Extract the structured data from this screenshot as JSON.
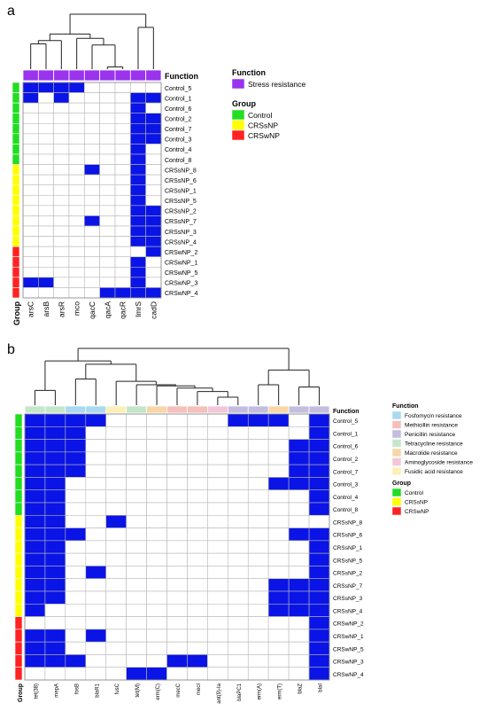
{
  "chart_data": [
    {
      "type": "heatmap",
      "panel_label": "a",
      "columns": [
        "arsC",
        "arsB",
        "arsR",
        "mco",
        "qacC",
        "qacA",
        "qacR",
        "lmrS",
        "cadD"
      ],
      "rows": [
        "Control_5",
        "Control_1",
        "Control_6",
        "Control_2",
        "Control_7",
        "Control_3",
        "Control_4",
        "Control_8",
        "CRSsNP_8",
        "CRSsNP_6",
        "CRSsNP_1",
        "CRSsNP_5",
        "CRSsNP_2",
        "CRSsNP_7",
        "CRSsNP_3",
        "CRSsNP_4",
        "CRSwNP_2",
        "CRSwNP_1",
        "CRSwNP_5",
        "CRSwNP_3",
        "CRSwNP_4"
      ],
      "row_group": [
        "Control",
        "Control",
        "Control",
        "Control",
        "Control",
        "Control",
        "Control",
        "Control",
        "CRSsNP",
        "CRSsNP",
        "CRSsNP",
        "CRSsNP",
        "CRSsNP",
        "CRSsNP",
        "CRSsNP",
        "CRSsNP",
        "CRSwNP",
        "CRSwNP",
        "CRSwNP",
        "CRSwNP",
        "CRSwNP"
      ],
      "column_function": [
        "Stress resistance",
        "Stress resistance",
        "Stress resistance",
        "Stress resistance",
        "Stress resistance",
        "Stress resistance",
        "Stress resistance",
        "Stress resistance",
        "Stress resistance"
      ],
      "matrix": [
        [
          1,
          1,
          1,
          1,
          0,
          0,
          0,
          0,
          0
        ],
        [
          1,
          0,
          1,
          0,
          0,
          0,
          0,
          1,
          1
        ],
        [
          0,
          0,
          0,
          0,
          0,
          0,
          0,
          1,
          0
        ],
        [
          0,
          0,
          0,
          0,
          0,
          0,
          0,
          1,
          1
        ],
        [
          0,
          0,
          0,
          0,
          0,
          0,
          0,
          1,
          1
        ],
        [
          0,
          0,
          0,
          0,
          0,
          0,
          0,
          1,
          1
        ],
        [
          0,
          0,
          0,
          0,
          0,
          0,
          0,
          1,
          0
        ],
        [
          0,
          0,
          0,
          0,
          0,
          0,
          0,
          1,
          0
        ],
        [
          0,
          0,
          0,
          0,
          1,
          0,
          0,
          1,
          0
        ],
        [
          0,
          0,
          0,
          0,
          0,
          0,
          0,
          1,
          0
        ],
        [
          0,
          0,
          0,
          0,
          0,
          0,
          0,
          1,
          0
        ],
        [
          0,
          0,
          0,
          0,
          0,
          0,
          0,
          1,
          0
        ],
        [
          0,
          0,
          0,
          0,
          0,
          0,
          0,
          1,
          1
        ],
        [
          0,
          0,
          0,
          0,
          1,
          0,
          0,
          1,
          1
        ],
        [
          0,
          0,
          0,
          0,
          0,
          0,
          0,
          1,
          1
        ],
        [
          0,
          0,
          0,
          0,
          0,
          0,
          0,
          1,
          1
        ],
        [
          0,
          0,
          0,
          0,
          0,
          0,
          0,
          0,
          1
        ],
        [
          0,
          0,
          0,
          0,
          0,
          0,
          0,
          1,
          0
        ],
        [
          0,
          0,
          0,
          0,
          0,
          0,
          0,
          1,
          0
        ],
        [
          1,
          1,
          0,
          0,
          0,
          0,
          0,
          1,
          0
        ],
        [
          0,
          0,
          0,
          0,
          0,
          1,
          1,
          1,
          1
        ]
      ],
      "function_legend": {
        "title": "Function",
        "items": [
          {
            "label": "Stress resistance",
            "color": "#9933ee"
          }
        ]
      },
      "group_legend": {
        "title": "Group",
        "items": [
          {
            "label": "Control",
            "color": "#22dd22"
          },
          {
            "label": "CRSsNP",
            "color": "#ffff00"
          },
          {
            "label": "CRSwNP",
            "color": "#ff2222"
          }
        ]
      },
      "function_bar_label": "Function",
      "group_bar_label": "Group"
    },
    {
      "type": "heatmap",
      "panel_label": "b",
      "columns": [
        "tet(38)",
        "mepA",
        "fosB",
        "blaR1",
        "fusC",
        "tet(M)",
        "erm(C)",
        "mecC",
        "mecI",
        "ant(9)-Ia",
        "blaPC1",
        "erm(A)",
        "erm(T)",
        "blaZ",
        "blaI"
      ],
      "rows": [
        "Control_5",
        "Control_1",
        "Control_6",
        "Control_2",
        "Control_7",
        "Control_3",
        "Control_4",
        "Control_8",
        "CRSsNP_8",
        "CRSsNP_6",
        "CRSsNP_1",
        "CRSsNP_5",
        "CRSsNP_2",
        "CRSsNP_7",
        "CRSsNP_3",
        "CRSsNP_4",
        "CRSwNP_2",
        "CRSwNP_1",
        "CRSwNP_5",
        "CRSwNP_3",
        "CRSwNP_4"
      ],
      "row_group": [
        "Control",
        "Control",
        "Control",
        "Control",
        "Control",
        "Control",
        "Control",
        "Control",
        "CRSsNP",
        "CRSsNP",
        "CRSsNP",
        "CRSsNP",
        "CRSsNP",
        "CRSsNP",
        "CRSsNP",
        "CRSsNP",
        "CRSwNP",
        "CRSwNP",
        "CRSwNP",
        "CRSwNP",
        "CRSwNP"
      ],
      "column_function": [
        "Tetracycline resistance",
        "Tetracycline resistance",
        "Fosfomycin resistance",
        "Fosfomycin resistance",
        "Fusidic acid resistance",
        "Tetracycline resistance",
        "Macrolide resistance",
        "Methicillin resistance",
        "Methicillin resistance",
        "Aminoglycoside resistance",
        "Penicillin resistance",
        "Penicillin resistance",
        "Macrolide resistance",
        "Penicillin resistance",
        "Penicillin resistance"
      ],
      "matrix": [
        [
          1,
          1,
          1,
          1,
          0,
          0,
          0,
          0,
          0,
          0,
          1,
          1,
          1,
          0,
          1
        ],
        [
          1,
          1,
          1,
          0,
          0,
          0,
          0,
          0,
          0,
          0,
          0,
          0,
          0,
          0,
          1
        ],
        [
          1,
          1,
          1,
          0,
          0,
          0,
          0,
          0,
          0,
          0,
          0,
          0,
          0,
          1,
          1
        ],
        [
          1,
          1,
          1,
          0,
          0,
          0,
          0,
          0,
          0,
          0,
          0,
          0,
          0,
          1,
          1
        ],
        [
          1,
          1,
          1,
          0,
          0,
          0,
          0,
          0,
          0,
          0,
          0,
          0,
          0,
          1,
          1
        ],
        [
          1,
          1,
          0,
          0,
          0,
          0,
          0,
          0,
          0,
          0,
          0,
          0,
          1,
          1,
          1
        ],
        [
          1,
          1,
          0,
          0,
          0,
          0,
          0,
          0,
          0,
          0,
          0,
          0,
          0,
          0,
          1
        ],
        [
          1,
          1,
          0,
          0,
          0,
          0,
          0,
          0,
          0,
          0,
          0,
          0,
          0,
          0,
          1
        ],
        [
          1,
          1,
          0,
          0,
          1,
          0,
          0,
          0,
          0,
          0,
          0,
          0,
          0,
          0,
          0
        ],
        [
          1,
          1,
          1,
          0,
          0,
          0,
          0,
          0,
          0,
          0,
          0,
          0,
          0,
          1,
          1
        ],
        [
          1,
          1,
          0,
          0,
          0,
          0,
          0,
          0,
          0,
          0,
          0,
          0,
          0,
          0,
          1
        ],
        [
          1,
          1,
          0,
          0,
          0,
          0,
          0,
          0,
          0,
          0,
          0,
          0,
          0,
          0,
          1
        ],
        [
          1,
          1,
          0,
          1,
          0,
          0,
          0,
          0,
          0,
          0,
          0,
          0,
          0,
          0,
          1
        ],
        [
          1,
          1,
          0,
          0,
          0,
          0,
          0,
          0,
          0,
          0,
          0,
          0,
          1,
          1,
          1
        ],
        [
          1,
          1,
          0,
          0,
          0,
          0,
          0,
          0,
          0,
          0,
          0,
          0,
          1,
          1,
          1
        ],
        [
          1,
          0,
          0,
          0,
          0,
          0,
          0,
          0,
          0,
          0,
          0,
          0,
          1,
          1,
          1
        ],
        [
          0,
          0,
          0,
          0,
          0,
          0,
          0,
          0,
          0,
          0,
          0,
          0,
          0,
          0,
          1
        ],
        [
          1,
          1,
          0,
          1,
          0,
          0,
          0,
          0,
          0,
          0,
          0,
          0,
          0,
          0,
          1
        ],
        [
          1,
          1,
          0,
          0,
          0,
          0,
          0,
          0,
          0,
          0,
          0,
          0,
          0,
          0,
          1
        ],
        [
          1,
          1,
          1,
          0,
          0,
          0,
          0,
          1,
          1,
          0,
          0,
          0,
          0,
          0,
          1
        ],
        [
          0,
          0,
          0,
          0,
          0,
          1,
          1,
          0,
          0,
          0,
          0,
          0,
          0,
          0,
          1
        ]
      ],
      "function_legend": {
        "title": "Function",
        "items": [
          {
            "label": "Fosfomycin resistance",
            "color": "#a9d9f0"
          },
          {
            "label": "Methicillin resistance",
            "color": "#f5c0bb"
          },
          {
            "label": "Penicillin resistance",
            "color": "#c3bde0"
          },
          {
            "label": "Tetracycline resistance",
            "color": "#c6e6cc"
          },
          {
            "label": "Macrolide resistance",
            "color": "#f7d6a8"
          },
          {
            "label": "Aminoglycoside resistance",
            "color": "#f4c6da"
          },
          {
            "label": "Fusidic acid resistance",
            "color": "#fbf0b8"
          }
        ]
      },
      "group_legend": {
        "title": "Group",
        "items": [
          {
            "label": "Control",
            "color": "#22dd22"
          },
          {
            "label": "CRSsNP",
            "color": "#ffff00"
          },
          {
            "label": "CRSwNP",
            "color": "#ff2222"
          }
        ]
      },
      "function_bar_label": "Function",
      "group_bar_label": "Group"
    }
  ],
  "colors": {
    "present": "#0a14e6",
    "absent": "#ffffff",
    "cell_border": "#b8b8b8"
  }
}
